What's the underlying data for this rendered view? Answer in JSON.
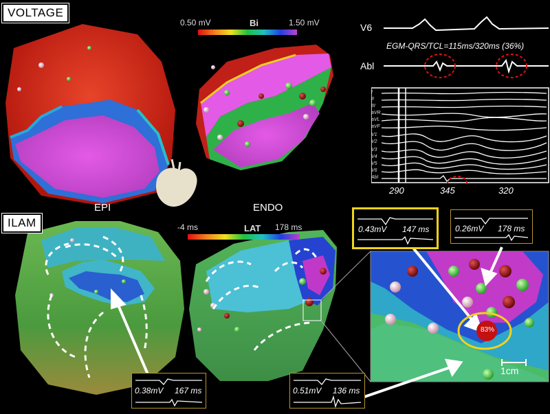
{
  "sections": {
    "voltage": "VOLTAGE",
    "ilam": "ILAM"
  },
  "voltage_colorbar": {
    "min": "0.50 mV",
    "title": "Bi",
    "max": "1.50 mV"
  },
  "lat_colorbar": {
    "min": "-4 ms",
    "title": "LAT",
    "max": "178 ms"
  },
  "map_labels": {
    "epi": "EPI",
    "endo": "ENDO"
  },
  "ecg": {
    "v6_label": "V6",
    "abl_label": "Abl",
    "ratio_text": "EGM-QRS/TCL=115ms/320ms (36%)",
    "leads": [
      "I",
      "II",
      "III",
      "aVR",
      "aVL",
      "aVF",
      "V1",
      "V2",
      "V3",
      "V4",
      "V5",
      "V6",
      "Abl"
    ],
    "cycle_lengths": [
      "290",
      "345",
      "320"
    ]
  },
  "egm_boxes": {
    "top_left": {
      "amp": "0.43mV",
      "lat": "147 ms"
    },
    "top_right": {
      "amp": "0.26mV",
      "lat": "178 ms"
    },
    "bottom_left": {
      "amp": "0.38mV",
      "lat": "167 ms"
    },
    "bottom_mid": {
      "amp": "0.51mV",
      "lat": "136 ms"
    }
  },
  "zoom": {
    "percent": "83%",
    "scale": "1cm"
  },
  "colors": {
    "frame_gold": "#f2d21a",
    "highlight_red": "#e01010"
  }
}
